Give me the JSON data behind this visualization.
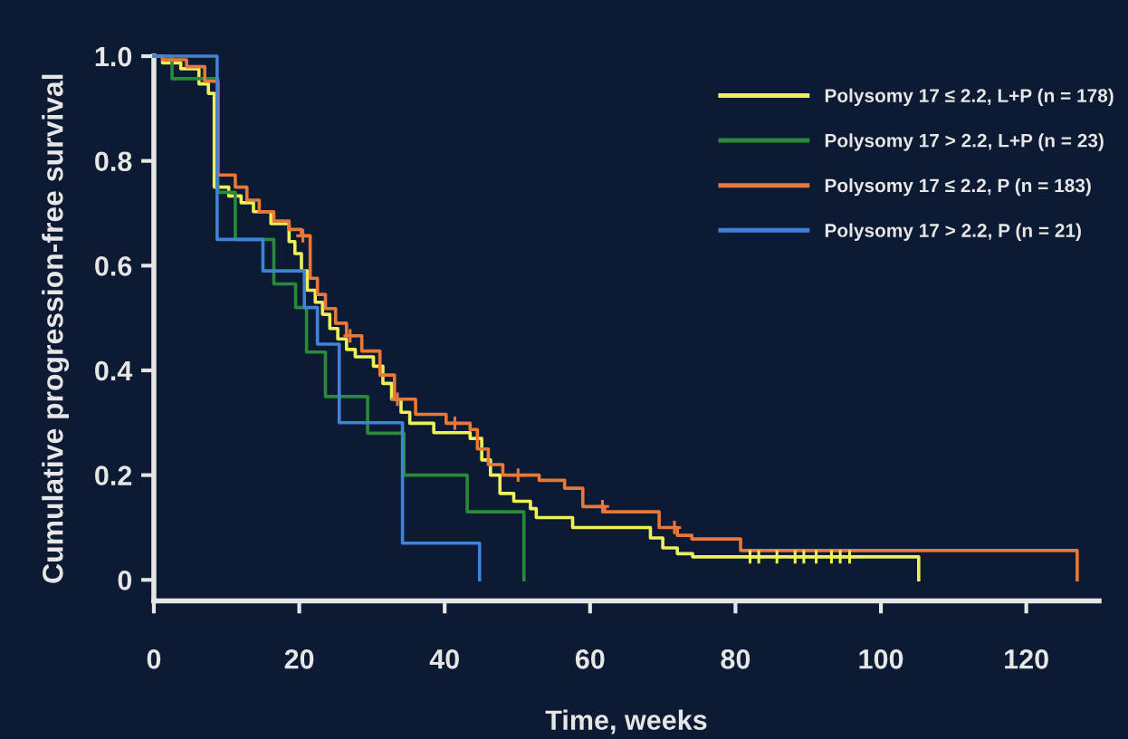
{
  "chart_data": {
    "type": "step",
    "xlabel": "Time, weeks",
    "ylabel": "Cumulative progression-free survival",
    "xlim": [
      0,
      130
    ],
    "xticks": [
      0,
      20,
      40,
      60,
      80,
      100,
      120
    ],
    "ylim": [
      -0.04,
      1.0
    ],
    "yticks": [
      0,
      0.2,
      0.4,
      0.6,
      0.8,
      {
        "value": 1,
        "label": "1.0"
      }
    ],
    "legend": "top right",
    "series": [
      {
        "name": "Polysomy 17 ≤ 2.2, L+P (n = 178)",
        "color": "#eef05a",
        "x": [
          0,
          1.2,
          3.7,
          6.2,
          7.5,
          8.3,
          10.3,
          12,
          13.7,
          16.1,
          18.6,
          19.4,
          20.3,
          21.1,
          22.2,
          23.2,
          24.2,
          25.3,
          26.5,
          27.7,
          30.2,
          31.5,
          32.7,
          34,
          35.2,
          38.5,
          43.5,
          45.1,
          46.3,
          47.6,
          49.5,
          51.8,
          52.6,
          57.6,
          68.3,
          70,
          72,
          74.1,
          105.2
        ],
        "values": [
          1.0,
          0.987,
          0.976,
          0.947,
          0.929,
          0.75,
          0.733,
          0.72,
          0.703,
          0.68,
          0.646,
          0.623,
          0.59,
          0.553,
          0.53,
          0.507,
          0.48,
          0.46,
          0.44,
          0.426,
          0.408,
          0.375,
          0.345,
          0.32,
          0.299,
          0.281,
          0.27,
          0.229,
          0.2,
          0.165,
          0.15,
          0.136,
          0.119,
          0.1,
          0.08,
          0.061,
          0.05,
          0.044,
          0
        ]
      },
      {
        "name": "Polysomy 17 > 2.2, L+P (n = 23)",
        "color": "#2a8a3a",
        "x": [
          0,
          2.5,
          8.8,
          11.2,
          16.5,
          19.5,
          21,
          23.6,
          29.4,
          34.4,
          43.1,
          50.9
        ],
        "values": [
          1.0,
          0.957,
          0.74,
          0.65,
          0.565,
          0.52,
          0.435,
          0.35,
          0.28,
          0.2,
          0.13,
          0
        ]
      },
      {
        "name": "Polysomy 17 ≤ 2.2, P (n = 183)",
        "color": "#e8783a",
        "x": [
          0,
          1.2,
          4.5,
          7,
          8.8,
          11.2,
          12.8,
          14.5,
          16.5,
          18.6,
          20.3,
          21.5,
          22.5,
          23.6,
          25,
          26.5,
          28.6,
          31.1,
          33.1,
          36,
          40.2,
          43.5,
          44.5,
          46,
          48,
          53,
          56.5,
          59,
          62,
          69.5,
          72,
          74,
          80.7,
          127
        ],
        "values": [
          1.0,
          0.993,
          0.98,
          0.952,
          0.773,
          0.75,
          0.725,
          0.703,
          0.685,
          0.669,
          0.657,
          0.576,
          0.545,
          0.518,
          0.49,
          0.466,
          0.437,
          0.391,
          0.345,
          0.316,
          0.299,
          0.287,
          0.25,
          0.22,
          0.2,
          0.19,
          0.175,
          0.14,
          0.13,
          0.1,
          0.085,
          0.078,
          0.056,
          0
        ]
      },
      {
        "name": "Polysomy 17 > 2.2, P (n = 21)",
        "color": "#3f82d8",
        "x": [
          0,
          8.7,
          15,
          20.7,
          22.5,
          25.5,
          34.2,
          44.8
        ],
        "values": [
          1.0,
          0.65,
          0.59,
          0.52,
          0.45,
          0.3,
          0.07,
          0
        ]
      },
      {
        "type": "scatter",
        "marker": "cross",
        "color": "#e8783a",
        "x": [
          20.5,
          27,
          33.5,
          41.4,
          50.1,
          61.7,
          71.6
        ],
        "values": [
          0.657,
          0.466,
          0.345,
          0.299,
          0.2,
          0.14,
          0.1
        ]
      },
      {
        "type": "scatter",
        "marker": "cross",
        "color": "#eef05a",
        "x": [
          82,
          83.2,
          85.7,
          88.2,
          89.4,
          91.1,
          93.2,
          94.4,
          95.7
        ],
        "values": [
          0.044,
          0.044,
          0.044,
          0.044,
          0.044,
          0.044,
          0.044,
          0.044,
          0.044
        ]
      }
    ]
  }
}
